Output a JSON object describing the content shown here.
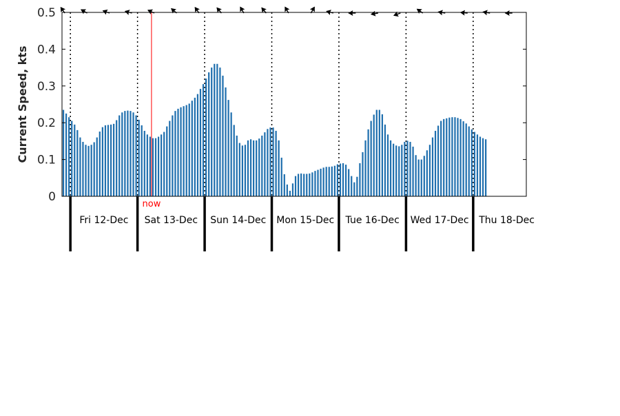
{
  "chart_data": {
    "type": "bar",
    "title": "",
    "xlabel": "",
    "ylabel": "Current Speed, kts",
    "ylim": [
      0,
      0.5
    ],
    "yticks": [
      "0",
      "0.1",
      "0.2",
      "0.3",
      "0.4",
      "0.5"
    ],
    "grid": false,
    "bar_color": "#1f6fae",
    "now_color": "#ff0000",
    "now_label": "now",
    "now_hour": 29,
    "start_hour": -3,
    "end_hour": 163,
    "day_labels": [
      "Fri 12-Dec",
      "Sat 13-Dec",
      "Sun 14-Dec",
      "Mon 15-Dec",
      "Tue 16-Dec",
      "Wed 17-Dec",
      "Thu 18-Dec"
    ],
    "values": [
      0.235,
      0.225,
      0.215,
      0.205,
      0.195,
      0.18,
      0.16,
      0.148,
      0.14,
      0.137,
      0.14,
      0.147,
      0.16,
      0.176,
      0.188,
      0.193,
      0.194,
      0.195,
      0.197,
      0.207,
      0.22,
      0.228,
      0.232,
      0.233,
      0.232,
      0.228,
      0.22,
      0.208,
      0.193,
      0.178,
      0.168,
      0.162,
      0.158,
      0.158,
      0.162,
      0.168,
      0.175,
      0.19,
      0.205,
      0.22,
      0.232,
      0.238,
      0.242,
      0.245,
      0.248,
      0.252,
      0.26,
      0.268,
      0.278,
      0.292,
      0.305,
      0.32,
      0.337,
      0.35,
      0.36,
      0.36,
      0.35,
      0.328,
      0.296,
      0.262,
      0.228,
      0.194,
      0.165,
      0.145,
      0.138,
      0.14,
      0.152,
      0.155,
      0.152,
      0.152,
      0.157,
      0.165,
      0.174,
      0.183,
      0.187,
      0.187,
      0.178,
      0.152,
      0.105,
      0.06,
      0.032,
      0.015,
      0.035,
      0.055,
      0.061,
      0.062,
      0.061,
      0.061,
      0.062,
      0.065,
      0.069,
      0.072,
      0.075,
      0.078,
      0.08,
      0.08,
      0.081,
      0.083,
      0.087,
      0.089,
      0.09,
      0.086,
      0.074,
      0.055,
      0.038,
      0.053,
      0.09,
      0.12,
      0.152,
      0.182,
      0.205,
      0.222,
      0.235,
      0.235,
      0.223,
      0.195,
      0.168,
      0.152,
      0.143,
      0.138,
      0.136,
      0.14,
      0.148,
      0.151,
      0.148,
      0.135,
      0.112,
      0.1,
      0.1,
      0.11,
      0.125,
      0.14,
      0.16,
      0.178,
      0.192,
      0.205,
      0.21,
      0.212,
      0.214,
      0.215,
      0.215,
      0.213,
      0.21,
      0.204,
      0.198,
      0.19,
      0.182,
      0.175,
      0.168,
      0.162,
      0.158,
      0.155
    ],
    "direction_arrows": [
      {
        "hour": -2,
        "angle": 235
      },
      {
        "hour": 6,
        "angle": 210
      },
      {
        "hour": 14,
        "angle": 200
      },
      {
        "hour": 22,
        "angle": 195
      },
      {
        "hour": 30,
        "angle": 205
      },
      {
        "hour": 38,
        "angle": 220
      },
      {
        "hour": 46,
        "angle": 235
      },
      {
        "hour": 54,
        "angle": 230
      },
      {
        "hour": 62,
        "angle": 240
      },
      {
        "hour": 70,
        "angle": 230
      },
      {
        "hour": 78,
        "angle": 240
      },
      {
        "hour": 86,
        "angle": 300
      },
      {
        "hour": 94,
        "angle": 195
      },
      {
        "hour": 102,
        "angle": 180
      },
      {
        "hour": 110,
        "angle": 170
      },
      {
        "hour": 118,
        "angle": 160
      },
      {
        "hour": 126,
        "angle": 215
      },
      {
        "hour": 134,
        "angle": 190
      },
      {
        "hour": 142,
        "angle": 185
      },
      {
        "hour": 150,
        "angle": 190
      },
      {
        "hour": 158,
        "angle": 180
      }
    ]
  }
}
